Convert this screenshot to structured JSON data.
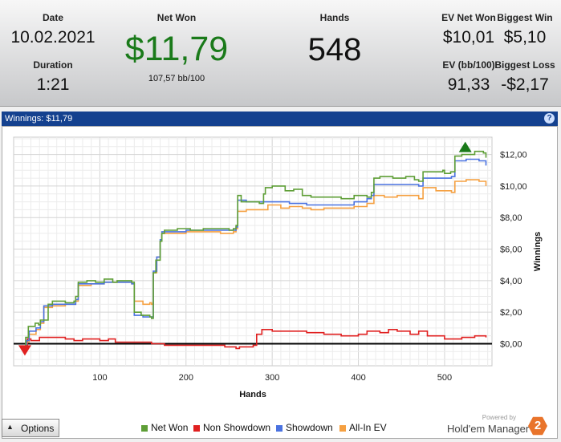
{
  "stats": {
    "date_label": "Date",
    "date_value": "10.02.2021",
    "duration_label": "Duration",
    "duration_value": "1:21",
    "net_won_label": "Net Won",
    "net_won_value": "$11,79",
    "net_won_sub": "107,57 bb/100",
    "hands_label": "Hands",
    "hands_value": "548",
    "ev_net_won_label": "EV Net Won",
    "ev_net_won_value": "$10,01",
    "biggest_win_label": "Biggest Win",
    "biggest_win_value": "$5,10",
    "ev_bb_label": "EV (bb/100)",
    "ev_bb_value": "91,33",
    "biggest_loss_label": "Biggest Loss",
    "biggest_loss_value": "-$2,17"
  },
  "panel": {
    "title": "Winnings:  $11,79",
    "help_glyph": "?"
  },
  "options_label": "Options",
  "branding": {
    "powered_by": "Powered by",
    "name": "Hold'em Manager",
    "logo_text": "2"
  },
  "colors": {
    "net_won": "#5e9e36",
    "non_showdown": "#e02020",
    "showdown": "#4a72e0",
    "all_in_ev": "#f5a041",
    "net_won_big": "#1a7a1a",
    "panel_bar": "#14418f"
  },
  "chart_data": {
    "type": "line",
    "xlabel": "Hands",
    "ylabel": "Winnings",
    "xlim": [
      0,
      555
    ],
    "ylim": [
      -1.4,
      13.1
    ],
    "x_ticks": [
      100,
      200,
      300,
      400,
      500
    ],
    "y_ticks": [
      0,
      2,
      4,
      6,
      8,
      10,
      12
    ],
    "y_tick_labels": [
      "$0,00",
      "$2,00",
      "$4,00",
      "$6,00",
      "$8,00",
      "$10,00",
      "$12,00"
    ],
    "grid": true,
    "legend_position": "bottom",
    "markers": [
      {
        "type": "high",
        "x": 524,
        "y": 12.0,
        "color": "#1a7a1a"
      },
      {
        "type": "low",
        "x": 13,
        "y": -0.2,
        "color": "#e02020"
      }
    ],
    "series": [
      {
        "name": "Net Won",
        "color": "#5e9e36",
        "points": [
          [
            12,
            -0.2
          ],
          [
            14,
            0.4
          ],
          [
            17,
            1.1
          ],
          [
            25,
            1.3
          ],
          [
            29,
            1.2
          ],
          [
            31,
            1.5
          ],
          [
            40,
            2.5
          ],
          [
            45,
            2.7
          ],
          [
            60,
            2.6
          ],
          [
            70,
            2.7
          ],
          [
            72,
            3.0
          ],
          [
            75,
            3.9
          ],
          [
            85,
            4.0
          ],
          [
            95,
            3.9
          ],
          [
            105,
            4.1
          ],
          [
            115,
            3.9
          ],
          [
            120,
            4.0
          ],
          [
            133,
            4.0
          ],
          [
            137,
            3.9
          ],
          [
            140,
            2.0
          ],
          [
            148,
            1.8
          ],
          [
            158,
            1.7
          ],
          [
            160,
            1.6
          ],
          [
            162,
            4.5
          ],
          [
            165,
            5.3
          ],
          [
            170,
            6.5
          ],
          [
            172,
            7.0
          ],
          [
            175,
            7.2
          ],
          [
            190,
            7.3
          ],
          [
            205,
            7.2
          ],
          [
            220,
            7.3
          ],
          [
            235,
            7.3
          ],
          [
            250,
            7.2
          ],
          [
            255,
            7.3
          ],
          [
            258,
            7.5
          ],
          [
            260,
            9.4
          ],
          [
            264,
            9.0
          ],
          [
            275,
            9.0
          ],
          [
            285,
            8.9
          ],
          [
            290,
            9.5
          ],
          [
            292,
            9.9
          ],
          [
            300,
            10.0
          ],
          [
            315,
            9.7
          ],
          [
            325,
            9.8
          ],
          [
            335,
            9.4
          ],
          [
            345,
            9.3
          ],
          [
            365,
            9.3
          ],
          [
            380,
            9.2
          ],
          [
            395,
            9.4
          ],
          [
            410,
            9.3
          ],
          [
            415,
            9.6
          ],
          [
            418,
            10.5
          ],
          [
            425,
            10.6
          ],
          [
            440,
            10.5
          ],
          [
            455,
            10.6
          ],
          [
            465,
            10.4
          ],
          [
            470,
            10.3
          ],
          [
            475,
            10.9
          ],
          [
            485,
            10.9
          ],
          [
            498,
            11.0
          ],
          [
            500,
            10.8
          ],
          [
            507,
            10.9
          ],
          [
            512,
            11.9
          ],
          [
            520,
            12.0
          ],
          [
            535,
            12.2
          ],
          [
            545,
            12.1
          ],
          [
            548,
            11.8
          ]
        ]
      },
      {
        "name": "Non Showdown",
        "color": "#e02020",
        "points": [
          [
            12,
            -0.2
          ],
          [
            16,
            0.3
          ],
          [
            20,
            0.2
          ],
          [
            30,
            0.4
          ],
          [
            45,
            0.4
          ],
          [
            60,
            0.3
          ],
          [
            70,
            0.2
          ],
          [
            80,
            0.3
          ],
          [
            90,
            0.3
          ],
          [
            100,
            0.2
          ],
          [
            110,
            0.3
          ],
          [
            118,
            0.1
          ],
          [
            125,
            0.1
          ],
          [
            140,
            0.1
          ],
          [
            160,
            0.0
          ],
          [
            175,
            -0.1
          ],
          [
            190,
            -0.1
          ],
          [
            210,
            -0.1
          ],
          [
            230,
            -0.1
          ],
          [
            245,
            -0.2
          ],
          [
            250,
            -0.2
          ],
          [
            258,
            -0.3
          ],
          [
            262,
            -0.2
          ],
          [
            278,
            -0.1
          ],
          [
            282,
            0.6
          ],
          [
            288,
            0.9
          ],
          [
            300,
            0.8
          ],
          [
            320,
            0.8
          ],
          [
            340,
            0.7
          ],
          [
            360,
            0.6
          ],
          [
            380,
            0.5
          ],
          [
            400,
            0.6
          ],
          [
            410,
            0.8
          ],
          [
            425,
            0.7
          ],
          [
            435,
            0.9
          ],
          [
            445,
            0.8
          ],
          [
            460,
            0.6
          ],
          [
            470,
            0.8
          ],
          [
            480,
            0.5
          ],
          [
            500,
            0.3
          ],
          [
            520,
            0.4
          ],
          [
            535,
            0.5
          ],
          [
            548,
            0.4
          ]
        ]
      },
      {
        "name": "Showdown",
        "color": "#4a72e0",
        "points": [
          [
            12,
            -0.2
          ],
          [
            15,
            0.2
          ],
          [
            18,
            0.8
          ],
          [
            26,
            1.0
          ],
          [
            31,
            1.4
          ],
          [
            35,
            2.4
          ],
          [
            45,
            2.5
          ],
          [
            60,
            2.5
          ],
          [
            72,
            2.8
          ],
          [
            75,
            3.8
          ],
          [
            90,
            3.8
          ],
          [
            105,
            3.9
          ],
          [
            120,
            3.9
          ],
          [
            133,
            3.9
          ],
          [
            137,
            3.8
          ],
          [
            140,
            1.8
          ],
          [
            150,
            1.7
          ],
          [
            160,
            1.7
          ],
          [
            162,
            4.6
          ],
          [
            166,
            5.5
          ],
          [
            170,
            6.6
          ],
          [
            172,
            7.1
          ],
          [
            180,
            7.1
          ],
          [
            200,
            7.2
          ],
          [
            220,
            7.2
          ],
          [
            240,
            7.2
          ],
          [
            255,
            7.2
          ],
          [
            258,
            7.4
          ],
          [
            260,
            9.1
          ],
          [
            270,
            9.0
          ],
          [
            285,
            9.0
          ],
          [
            300,
            9.0
          ],
          [
            320,
            8.9
          ],
          [
            340,
            8.8
          ],
          [
            360,
            8.8
          ],
          [
            380,
            8.8
          ],
          [
            395,
            9.0
          ],
          [
            410,
            9.2
          ],
          [
            415,
            9.4
          ],
          [
            418,
            10.1
          ],
          [
            430,
            10.1
          ],
          [
            450,
            10.1
          ],
          [
            465,
            10.1
          ],
          [
            470,
            10.0
          ],
          [
            475,
            10.5
          ],
          [
            490,
            10.5
          ],
          [
            500,
            10.5
          ],
          [
            508,
            10.6
          ],
          [
            512,
            11.6
          ],
          [
            525,
            11.7
          ],
          [
            540,
            11.6
          ],
          [
            546,
            11.6
          ],
          [
            548,
            11.3
          ]
        ]
      },
      {
        "name": "All-In EV",
        "color": "#f5a041",
        "points": [
          [
            12,
            -0.2
          ],
          [
            15,
            0.1
          ],
          [
            18,
            0.6
          ],
          [
            26,
            0.9
          ],
          [
            31,
            1.3
          ],
          [
            35,
            2.3
          ],
          [
            45,
            2.4
          ],
          [
            60,
            2.5
          ],
          [
            72,
            2.7
          ],
          [
            75,
            3.7
          ],
          [
            90,
            3.8
          ],
          [
            105,
            3.9
          ],
          [
            120,
            3.9
          ],
          [
            133,
            3.9
          ],
          [
            137,
            3.8
          ],
          [
            140,
            2.7
          ],
          [
            150,
            2.5
          ],
          [
            158,
            2.6
          ],
          [
            160,
            2.5
          ],
          [
            162,
            4.5
          ],
          [
            166,
            5.5
          ],
          [
            170,
            6.5
          ],
          [
            172,
            7.0
          ],
          [
            180,
            7.0
          ],
          [
            200,
            7.1
          ],
          [
            220,
            7.1
          ],
          [
            240,
            7.0
          ],
          [
            255,
            7.1
          ],
          [
            258,
            7.3
          ],
          [
            260,
            8.4
          ],
          [
            270,
            8.5
          ],
          [
            285,
            8.5
          ],
          [
            295,
            8.8
          ],
          [
            310,
            8.6
          ],
          [
            320,
            8.7
          ],
          [
            335,
            8.6
          ],
          [
            345,
            8.5
          ],
          [
            360,
            8.6
          ],
          [
            380,
            8.6
          ],
          [
            395,
            8.7
          ],
          [
            410,
            8.9
          ],
          [
            418,
            9.4
          ],
          [
            430,
            9.3
          ],
          [
            445,
            9.4
          ],
          [
            460,
            9.4
          ],
          [
            470,
            9.2
          ],
          [
            475,
            9.9
          ],
          [
            490,
            9.7
          ],
          [
            500,
            9.7
          ],
          [
            508,
            9.6
          ],
          [
            512,
            10.3
          ],
          [
            525,
            10.4
          ],
          [
            540,
            10.3
          ],
          [
            546,
            10.3
          ],
          [
            548,
            10.0
          ]
        ]
      }
    ]
  }
}
